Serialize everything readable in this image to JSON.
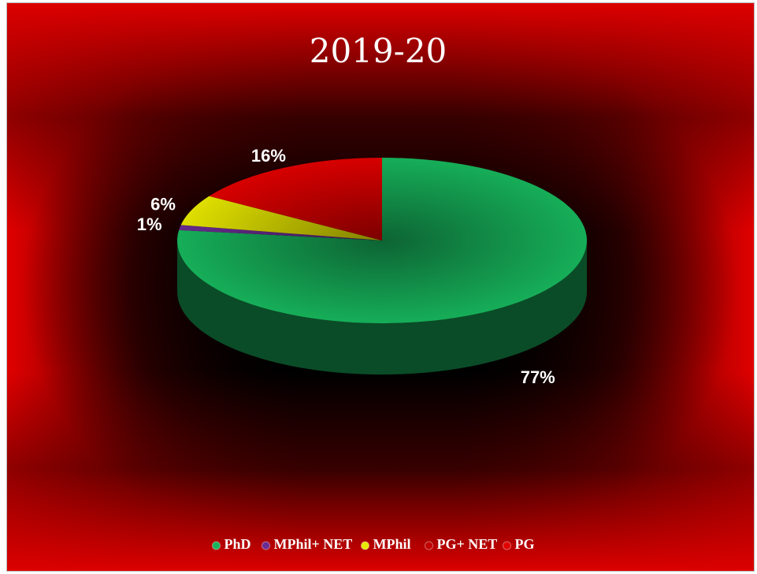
{
  "chart_data": {
    "type": "pie3d",
    "title": "2019-20",
    "categories": [
      "PhD",
      "MPhil+ NET",
      "MPhil",
      "PG+ NET",
      "PG"
    ],
    "values": [
      77,
      1,
      6,
      0,
      16
    ],
    "value_labels": [
      "77%",
      "1%",
      "6%",
      null,
      "16%"
    ],
    "colors": [
      "#17b55c",
      "#6a2c91",
      "#e8e800",
      "#c00000",
      "#e00000"
    ],
    "legend": "bottom"
  }
}
